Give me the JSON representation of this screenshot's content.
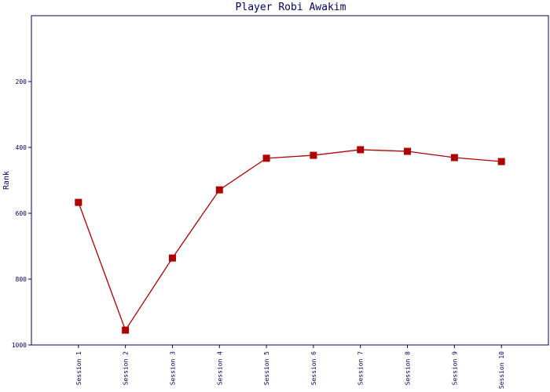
{
  "chart_data": {
    "type": "line",
    "title": "Player Robi Awakim",
    "y_label": "Rank",
    "categories": [
      "Session 1",
      "Session 2",
      "Session 3",
      "Session 4",
      "Session 5",
      "Session 6",
      "Session 7",
      "Session 8",
      "Session 9",
      "Session 10"
    ],
    "series": [
      {
        "name": "Rank",
        "color": "#b00000",
        "values": [
          567,
          955,
          736,
          529,
          433,
          424,
          407,
          412,
          431,
          443
        ]
      }
    ],
    "ylim": [
      0,
      1000
    ],
    "y_inverted": true,
    "yticks": [
      200,
      400,
      600,
      800,
      1000
    ]
  }
}
